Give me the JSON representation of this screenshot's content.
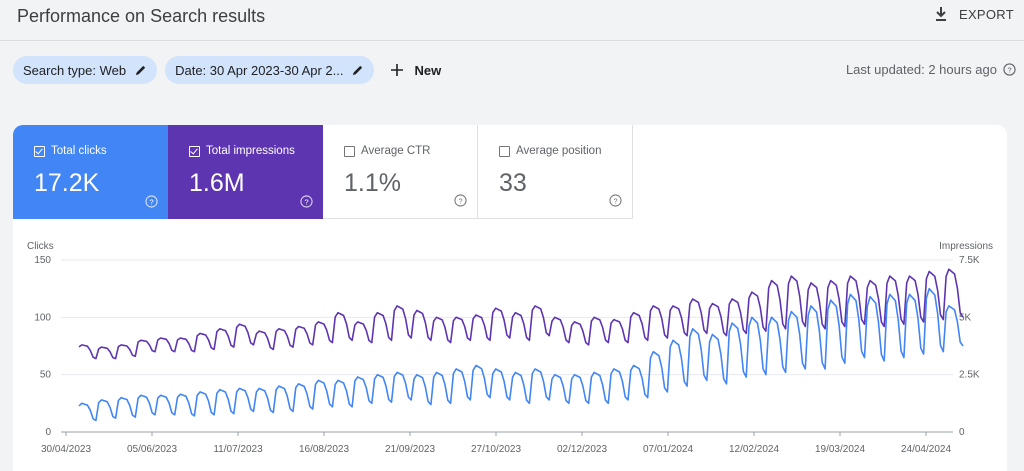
{
  "header": {
    "title": "Performance on Search results",
    "export_label": "EXPORT"
  },
  "filters": {
    "chips": [
      {
        "label": "Search type: Web"
      },
      {
        "label": "Date: 30 Apr 2023-30 Apr 2..."
      }
    ],
    "new_label": "New",
    "last_updated": "Last updated: 2 hours ago"
  },
  "metrics": [
    {
      "label": "Total clicks",
      "value": "17.2K",
      "checked": true,
      "color": "#4285f4"
    },
    {
      "label": "Total impressions",
      "value": "1.6M",
      "checked": true,
      "color": "#5e35b1"
    },
    {
      "label": "Average CTR",
      "value": "1.1%",
      "checked": false
    },
    {
      "label": "Average position",
      "value": "33",
      "checked": false
    }
  ],
  "chart_data": {
    "type": "line",
    "left_axis_label": "Clicks",
    "right_axis_label": "Impressions",
    "left_ticks": [
      "0",
      "50",
      "100",
      "150"
    ],
    "right_ticks": [
      "0",
      "2.5K",
      "5K",
      "7.5K"
    ],
    "ylim_left": [
      0,
      150
    ],
    "ylim_right": [
      0,
      7500
    ],
    "x_tick_labels": [
      "30/04/2023",
      "05/06/2023",
      "11/07/2023",
      "16/08/2023",
      "21/09/2023",
      "27/10/2023",
      "02/12/2023",
      "07/01/2024",
      "12/02/2024",
      "19/03/2024",
      "24/04/2024"
    ],
    "grid": true,
    "series": [
      {
        "name": "Total clicks",
        "axis": "left",
        "color": "#4285f4",
        "weekly_high": [
          25,
          28,
          30,
          32,
          32,
          33,
          35,
          37,
          38,
          38,
          40,
          42,
          45,
          45,
          48,
          50,
          52,
          50,
          52,
          55,
          58,
          55,
          52,
          55,
          50,
          50,
          52,
          55,
          58,
          70,
          80,
          90,
          85,
          95,
          100,
          100,
          105,
          110,
          115,
          120,
          118,
          120,
          120,
          125,
          110
        ],
        "weekly_low": [
          10,
          12,
          13,
          15,
          15,
          14,
          15,
          16,
          18,
          17,
          18,
          20,
          22,
          22,
          25,
          26,
          28,
          24,
          25,
          28,
          30,
          28,
          25,
          28,
          25,
          25,
          25,
          28,
          30,
          35,
          40,
          45,
          42,
          48,
          50,
          52,
          55,
          55,
          60,
          65,
          62,
          65,
          68,
          70,
          75
        ]
      },
      {
        "name": "Total impressions",
        "axis": "right",
        "color": "#5e35b1",
        "weekly_high": [
          3800,
          3700,
          3800,
          4000,
          4100,
          4100,
          4300,
          4500,
          4700,
          4400,
          4500,
          4600,
          4800,
          5200,
          4800,
          5200,
          5500,
          5300,
          5000,
          5000,
          5100,
          5400,
          5200,
          5500,
          5000,
          4800,
          5000,
          4900,
          5200,
          5500,
          5500,
          5800,
          5600,
          5800,
          6100,
          6600,
          6800,
          6500,
          6600,
          6800,
          6600,
          6800,
          6800,
          7000,
          7100
        ],
        "weekly_low": [
          3200,
          3200,
          3300,
          3500,
          3500,
          3500,
          3600,
          3700,
          3800,
          3600,
          3700,
          3800,
          3900,
          4000,
          3900,
          4000,
          4100,
          4000,
          3900,
          4000,
          4000,
          4100,
          4000,
          4200,
          3900,
          3800,
          3900,
          3900,
          4000,
          4100,
          4200,
          4300,
          4200,
          4300,
          4400,
          4500,
          4600,
          4500,
          4600,
          4700,
          4600,
          4700,
          4800,
          4900,
          5000
        ]
      }
    ]
  }
}
